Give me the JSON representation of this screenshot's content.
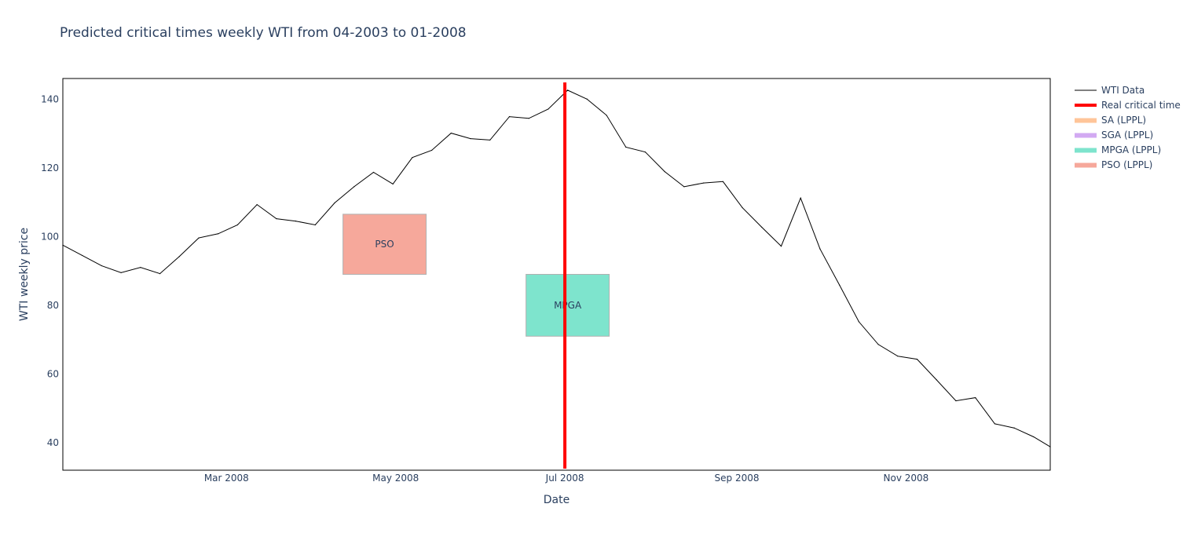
{
  "chart_data": {
    "type": "line",
    "title": "Predicted critical times weekly WTI from 04-2003 to 01-2008",
    "xlabel": "Date",
    "ylabel": "WTI weekly price",
    "xlim": [
      "2008-01-02",
      "2008-12-23"
    ],
    "ylim": [
      32,
      146
    ],
    "x_ticks": [
      {
        "date": "2008-03-01",
        "label": "Mar 2008"
      },
      {
        "date": "2008-05-01",
        "label": "May 2008"
      },
      {
        "date": "2008-07-01",
        "label": "Jul 2008"
      },
      {
        "date": "2008-09-01",
        "label": "Sep 2008"
      },
      {
        "date": "2008-11-01",
        "label": "Nov 2008"
      }
    ],
    "y_ticks": [
      40,
      60,
      80,
      100,
      120,
      140
    ],
    "series": [
      {
        "name": "WTI Data",
        "color": "#000000",
        "x": [
          "2008-01-02",
          "2008-01-09",
          "2008-01-16",
          "2008-01-23",
          "2008-01-30",
          "2008-02-06",
          "2008-02-13",
          "2008-02-20",
          "2008-02-27",
          "2008-03-05",
          "2008-03-12",
          "2008-03-19",
          "2008-03-26",
          "2008-04-02",
          "2008-04-09",
          "2008-04-16",
          "2008-04-23",
          "2008-04-30",
          "2008-05-07",
          "2008-05-14",
          "2008-05-21",
          "2008-05-28",
          "2008-06-04",
          "2008-06-11",
          "2008-06-18",
          "2008-06-25",
          "2008-07-02",
          "2008-07-09",
          "2008-07-16",
          "2008-07-23",
          "2008-07-30",
          "2008-08-06",
          "2008-08-13",
          "2008-08-20",
          "2008-08-27",
          "2008-09-03",
          "2008-09-10",
          "2008-09-17",
          "2008-09-24",
          "2008-10-01",
          "2008-10-08",
          "2008-10-15",
          "2008-10-22",
          "2008-10-29",
          "2008-11-05",
          "2008-11-12",
          "2008-11-19",
          "2008-11-26",
          "2008-12-03",
          "2008-12-10",
          "2008-12-17",
          "2008-12-23"
        ],
        "y": [
          97.5,
          94.5,
          91.5,
          89.5,
          91.0,
          89.2,
          94.2,
          99.6,
          100.8,
          103.4,
          109.3,
          105.2,
          104.5,
          103.4,
          109.8,
          114.5,
          118.7,
          115.3,
          123.0,
          125.1,
          130.1,
          128.5,
          128.1,
          134.9,
          134.4,
          137.1,
          142.6,
          140.0,
          135.3,
          126.0,
          124.6,
          118.9,
          114.5,
          115.6,
          116.0,
          108.4,
          102.7,
          97.2,
          111.2,
          96.4,
          85.9,
          75.2,
          68.6,
          65.2,
          64.3,
          58.3,
          52.2,
          53.1,
          45.5,
          44.3,
          41.7,
          38.8
        ]
      }
    ],
    "critical_time": {
      "name": "Real critical time",
      "date": "2008-07-01",
      "color": "#ff0000"
    },
    "prediction_boxes": [
      {
        "name": "SA (LPPL)",
        "label": "",
        "color": "#ffc599",
        "x0": null,
        "x1": null,
        "y0": null,
        "y1": null
      },
      {
        "name": "SGA (LPPL)",
        "label": "",
        "color": "#d2a9f2",
        "x0": null,
        "x1": null,
        "y0": null,
        "y1": null
      },
      {
        "name": "MPGA (LPPL)",
        "label": "MPGA",
        "color": "#7ee4cd",
        "x0": "2008-06-17",
        "x1": "2008-07-17",
        "y0": 71,
        "y1": 89
      },
      {
        "name": "PSO (LPPL)",
        "label": "PSO",
        "color": "#f6a89b",
        "x0": "2008-04-12",
        "x1": "2008-05-12",
        "y0": 89,
        "y1": 106.5
      }
    ],
    "legend_position": "top-right",
    "grid": false
  }
}
